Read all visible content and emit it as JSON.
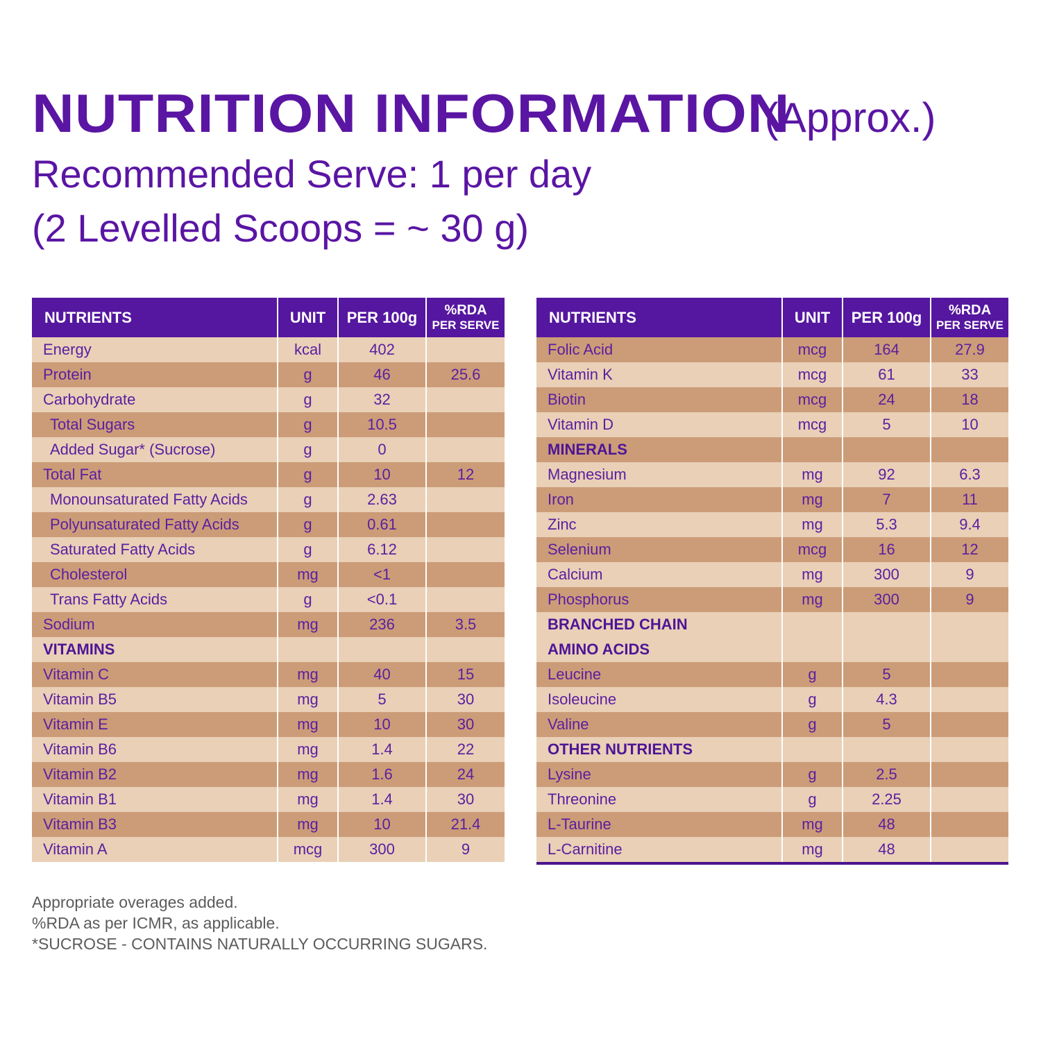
{
  "title": {
    "main": "NUTRITION INFORMATION",
    "approx": "(Approx.)",
    "serve_line": "Recommended Serve: 1 per day",
    "scoop_line": "(2 Levelled Scoops = ~ 30 g)"
  },
  "headers": {
    "nutrients": "NUTRIENTS",
    "unit": "UNIT",
    "per100": "PER 100g",
    "rda_top": "%RDA",
    "rda_bottom": "PER SERVE"
  },
  "left_table": [
    {
      "name": "Energy",
      "unit": "kcal",
      "per100": "402",
      "rda": "",
      "shade": "light"
    },
    {
      "name": "Protein",
      "unit": "g",
      "per100": "46",
      "rda": "25.6",
      "shade": "dark"
    },
    {
      "name": "Carbohydrate",
      "unit": "g",
      "per100": "32",
      "rda": "",
      "shade": "light"
    },
    {
      "name": "Total Sugars",
      "unit": "g",
      "per100": "10.5",
      "rda": "",
      "shade": "dark",
      "indent": true
    },
    {
      "name": "Added Sugar* (Sucrose)",
      "unit": "g",
      "per100": "0",
      "rda": "",
      "shade": "light",
      "indent": true
    },
    {
      "name": "Total Fat",
      "unit": "g",
      "per100": "10",
      "rda": "12",
      "shade": "dark"
    },
    {
      "name": "Monounsaturated Fatty Acids",
      "unit": "g",
      "per100": "2.63",
      "rda": "",
      "shade": "light",
      "indent": true
    },
    {
      "name": "Polyunsaturated Fatty Acids",
      "unit": "g",
      "per100": "0.61",
      "rda": "",
      "shade": "dark",
      "indent": true
    },
    {
      "name": "Saturated Fatty Acids",
      "unit": "g",
      "per100": "6.12",
      "rda": "",
      "shade": "light",
      "indent": true
    },
    {
      "name": "Cholesterol",
      "unit": "mg",
      "per100": "<1",
      "rda": "",
      "shade": "dark",
      "indent": true
    },
    {
      "name": "Trans Fatty Acids",
      "unit": "g",
      "per100": "<0.1",
      "rda": "",
      "shade": "light",
      "indent": true
    },
    {
      "name": "Sodium",
      "unit": "mg",
      "per100": "236",
      "rda": "3.5",
      "shade": "dark"
    },
    {
      "name": "VITAMINS",
      "unit": "",
      "per100": "",
      "rda": "",
      "shade": "light",
      "section": true
    },
    {
      "name": "Vitamin C",
      "unit": "mg",
      "per100": "40",
      "rda": "15",
      "shade": "dark"
    },
    {
      "name": "Vitamin B5",
      "unit": "mg",
      "per100": "5",
      "rda": "30",
      "shade": "light"
    },
    {
      "name": "Vitamin E",
      "unit": "mg",
      "per100": "10",
      "rda": "30",
      "shade": "dark"
    },
    {
      "name": "Vitamin B6",
      "unit": "mg",
      "per100": "1.4",
      "rda": "22",
      "shade": "light"
    },
    {
      "name": "Vitamin B2",
      "unit": "mg",
      "per100": "1.6",
      "rda": "24",
      "shade": "dark"
    },
    {
      "name": "Vitamin B1",
      "unit": "mg",
      "per100": "1.4",
      "rda": "30",
      "shade": "light"
    },
    {
      "name": "Vitamin B3",
      "unit": "mg",
      "per100": "10",
      "rda": "21.4",
      "shade": "dark"
    },
    {
      "name": "Vitamin A",
      "unit": "mcg",
      "per100": "300",
      "rda": "9",
      "shade": "light"
    }
  ],
  "right_table": [
    {
      "name": "Folic Acid",
      "unit": "mcg",
      "per100": "164",
      "rda": "27.9",
      "shade": "dark"
    },
    {
      "name": "Vitamin K",
      "unit": "mcg",
      "per100": "61",
      "rda": "33",
      "shade": "light"
    },
    {
      "name": "Biotin",
      "unit": "mcg",
      "per100": "24",
      "rda": "18",
      "shade": "dark"
    },
    {
      "name": "Vitamin D",
      "unit": "mcg",
      "per100": "5",
      "rda": "10",
      "shade": "light"
    },
    {
      "name": "MINERALS",
      "unit": "",
      "per100": "",
      "rda": "",
      "shade": "dark",
      "section": true
    },
    {
      "name": "Magnesium",
      "unit": "mg",
      "per100": "92",
      "rda": "6.3",
      "shade": "light"
    },
    {
      "name": "Iron",
      "unit": "mg",
      "per100": "7",
      "rda": "11",
      "shade": "dark"
    },
    {
      "name": "Zinc",
      "unit": "mg",
      "per100": "5.3",
      "rda": "9.4",
      "shade": "light"
    },
    {
      "name": "Selenium",
      "unit": "mcg",
      "per100": "16",
      "rda": "12",
      "shade": "dark"
    },
    {
      "name": "Calcium",
      "unit": "mg",
      "per100": "300",
      "rda": "9",
      "shade": "light"
    },
    {
      "name": "Phosphorus",
      "unit": "mg",
      "per100": "300",
      "rda": "9",
      "shade": "dark"
    },
    {
      "name": "BRANCHED CHAIN",
      "unit": "",
      "per100": "",
      "rda": "",
      "shade": "light",
      "section": true
    },
    {
      "name": "AMINO ACIDS",
      "unit": "",
      "per100": "",
      "rda": "",
      "shade": "light",
      "section": true
    },
    {
      "name": "Leucine",
      "unit": "g",
      "per100": "5",
      "rda": "",
      "shade": "dark"
    },
    {
      "name": "Isoleucine",
      "unit": "g",
      "per100": "4.3",
      "rda": "",
      "shade": "light"
    },
    {
      "name": "Valine",
      "unit": "g",
      "per100": "5",
      "rda": "",
      "shade": "dark"
    },
    {
      "name": "OTHER NUTRIENTS",
      "unit": "",
      "per100": "",
      "rda": "",
      "shade": "light",
      "section": true
    },
    {
      "name": "Lysine",
      "unit": "g",
      "per100": "2.5",
      "rda": "",
      "shade": "dark"
    },
    {
      "name": "Threonine",
      "unit": "g",
      "per100": "2.25",
      "rda": "",
      "shade": "light"
    },
    {
      "name": "L-Taurine",
      "unit": "mg",
      "per100": "48",
      "rda": "",
      "shade": "dark"
    },
    {
      "name": "L-Carnitine",
      "unit": "mg",
      "per100": "48",
      "rda": "",
      "shade": "light"
    }
  ],
  "footnotes": [
    "Appropriate overages added.",
    "%RDA as per ICMR, as applicable.",
    "*SUCROSE - CONTAINS NATURALLY OCCURRING SUGARS."
  ],
  "colors": {
    "header_purple": "#55179f",
    "row_light": "#e9d0b7",
    "row_dark": "#cc9c78",
    "text_purple": "#5a1ea0"
  }
}
